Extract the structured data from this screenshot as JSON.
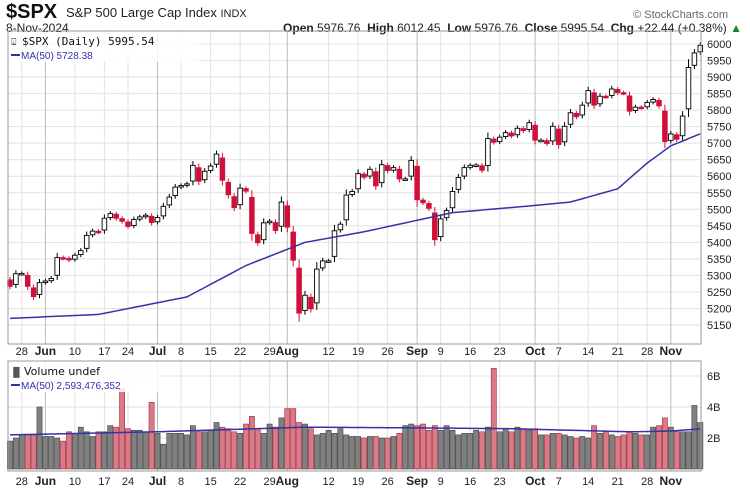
{
  "header": {
    "symbol": "$SPX",
    "name": "S&P 500 Large Cap Index",
    "exchange": "INDX",
    "date": "8-Nov-2024",
    "copyright": "© StockCharts.com",
    "open_label": "Open",
    "open": "5976.76",
    "high_label": "High",
    "high": "6012.45",
    "low_label": "Low",
    "low": "5976.76",
    "close_label": "Close",
    "close": "5995.54",
    "chg_label": "Chg",
    "chg": "+22.44 (+0.38%)",
    "chg_icon": "triangle-up-icon"
  },
  "colors": {
    "up": "#000000",
    "down": "#d0103a",
    "ma": "#3333aa",
    "vol_up": "#808080",
    "vol_down": "#d97a86"
  },
  "chart_data": [
    {
      "type": "candlestick",
      "title": "$SPX (Daily) 5995.54",
      "legend": [
        "$SPX (Daily) 5995.54",
        "MA(50) 5728.38"
      ],
      "legend_placement": "top-left",
      "ylim": [
        5120,
        6020
      ],
      "yticks": [
        5150,
        5200,
        5250,
        5300,
        5350,
        5400,
        5450,
        5500,
        5550,
        5600,
        5650,
        5700,
        5750,
        5800,
        5850,
        5900,
        5950,
        6000
      ],
      "xticks": [
        {
          "i": 2,
          "label": "28",
          "bold": false
        },
        {
          "i": 6,
          "label": "Jun",
          "bold": true
        },
        {
          "i": 11,
          "label": "10",
          "bold": false
        },
        {
          "i": 16,
          "label": "17",
          "bold": false
        },
        {
          "i": 20,
          "label": "24",
          "bold": false
        },
        {
          "i": 25,
          "label": "Jul",
          "bold": true
        },
        {
          "i": 29,
          "label": "8",
          "bold": false
        },
        {
          "i": 34,
          "label": "15",
          "bold": false
        },
        {
          "i": 39,
          "label": "22",
          "bold": false
        },
        {
          "i": 44,
          "label": "29",
          "bold": false
        },
        {
          "i": 47,
          "label": "Aug",
          "bold": true
        },
        {
          "i": 54,
          "label": "12",
          "bold": false
        },
        {
          "i": 59,
          "label": "19",
          "bold": false
        },
        {
          "i": 64,
          "label": "26",
          "bold": false
        },
        {
          "i": 69,
          "label": "Sep",
          "bold": true
        },
        {
          "i": 73,
          "label": "9",
          "bold": false
        },
        {
          "i": 78,
          "label": "16",
          "bold": false
        },
        {
          "i": 83,
          "label": "23",
          "bold": false
        },
        {
          "i": 89,
          "label": "Oct",
          "bold": true
        },
        {
          "i": 93,
          "label": "7",
          "bold": false
        },
        {
          "i": 98,
          "label": "14",
          "bold": false
        },
        {
          "i": 103,
          "label": "21",
          "bold": false
        },
        {
          "i": 108,
          "label": "28",
          "bold": false
        },
        {
          "i": 112,
          "label": "Nov",
          "bold": true
        }
      ],
      "first_open": 5290,
      "close": [
        5267,
        5305,
        5306,
        5267,
        5236,
        5278,
        5283,
        5291,
        5354,
        5352,
        5347,
        5361,
        5375,
        5421,
        5434,
        5431,
        5473,
        5487,
        5473,
        5464,
        5448,
        5469,
        5477,
        5482,
        5460,
        5475,
        5509,
        5537,
        5567,
        5572,
        5577,
        5633,
        5585,
        5615,
        5631,
        5667,
        5588,
        5544,
        5505,
        5564,
        5555,
        5427,
        5399,
        5459,
        5464,
        5436,
        5522,
        5446,
        5346,
        5186,
        5240,
        5199,
        5319,
        5344,
        5344,
        5435,
        5455,
        5543,
        5554,
        5608,
        5597,
        5621,
        5571,
        5635,
        5617,
        5626,
        5592,
        5592,
        5648,
        5529,
        5520,
        5503,
        5408,
        5471,
        5496,
        5554,
        5596,
        5626,
        5633,
        5634,
        5618,
        5714,
        5703,
        5718,
        5732,
        5722,
        5745,
        5738,
        5762,
        5709,
        5709,
        5699,
        5751,
        5696,
        5751,
        5792,
        5780,
        5815,
        5859,
        5815,
        5842,
        5841,
        5864,
        5853,
        5851,
        5797,
        5809,
        5808,
        5823,
        5832,
        5813,
        5705,
        5728,
        5712,
        5782,
        5929,
        5973,
        5996
      ],
      "ma50": [
        [
          0,
          5170
        ],
        [
          15,
          5182
        ],
        [
          30,
          5235
        ],
        [
          40,
          5330
        ],
        [
          50,
          5400
        ],
        [
          60,
          5432
        ],
        [
          75,
          5490
        ],
        [
          88,
          5510
        ],
        [
          95,
          5522
        ],
        [
          103,
          5562
        ],
        [
          108,
          5640
        ],
        [
          112,
          5692
        ],
        [
          117,
          5728.38
        ]
      ]
    },
    {
      "type": "bar",
      "title": "Volume undef",
      "legend": [
        "Volume undef",
        "MA(50) 2,593,476,352"
      ],
      "legend_placement": "top-left",
      "unit": "billions",
      "ylim": [
        0,
        6.8
      ],
      "yticks": [
        {
          "v": 2,
          "label": "2B"
        },
        {
          "v": 4,
          "label": "4B"
        },
        {
          "v": 6,
          "label": "6B"
        }
      ],
      "values": [
        1.8,
        2.0,
        2.2,
        2.2,
        2.2,
        4.0,
        2.1,
        2.1,
        2.0,
        1.8,
        2.4,
        2.3,
        2.7,
        2.4,
        2.1,
        2.4,
        2.4,
        2.8,
        2.7,
        5.2,
        2.6,
        2.5,
        2.5,
        2.4,
        4.3,
        2.3,
        1.6,
        2.3,
        2.3,
        2.3,
        2.2,
        2.8,
        2.4,
        2.4,
        2.5,
        3.0,
        2.7,
        2.6,
        2.4,
        2.3,
        2.9,
        3.4,
        2.6,
        2.3,
        2.9,
        2.7,
        3.3,
        3.9,
        3.9,
        3.0,
        2.9,
        2.6,
        2.2,
        2.3,
        2.5,
        2.3,
        2.6,
        2.2,
        2.1,
        2.1,
        2.0,
        2.1,
        2.1,
        2.0,
        2.0,
        2.1,
        2.3,
        2.8,
        2.9,
        2.8,
        2.9,
        2.5,
        2.8,
        2.5,
        2.8,
        2.5,
        2.2,
        2.3,
        2.3,
        2.5,
        2.4,
        2.7,
        6.5,
        2.4,
        2.6,
        2.4,
        2.7,
        2.6,
        2.5,
        2.6,
        2.2,
        2.2,
        2.3,
        2.3,
        2.2,
        2.1,
        2.0,
        2.1,
        2.0,
        2.8,
        2.3,
        2.4,
        2.2,
        2.1,
        2.2,
        2.4,
        2.3,
        2.2,
        2.2,
        2.7,
        2.8,
        3.3,
        2.7,
        2.4,
        2.4,
        2.4,
        4.1,
        3.0
      ],
      "ma50": [
        [
          0,
          2.2
        ],
        [
          25,
          2.4
        ],
        [
          50,
          2.7
        ],
        [
          70,
          2.65
        ],
        [
          85,
          2.6
        ],
        [
          105,
          2.4
        ],
        [
          112,
          2.45
        ],
        [
          117,
          2.59
        ]
      ]
    }
  ]
}
